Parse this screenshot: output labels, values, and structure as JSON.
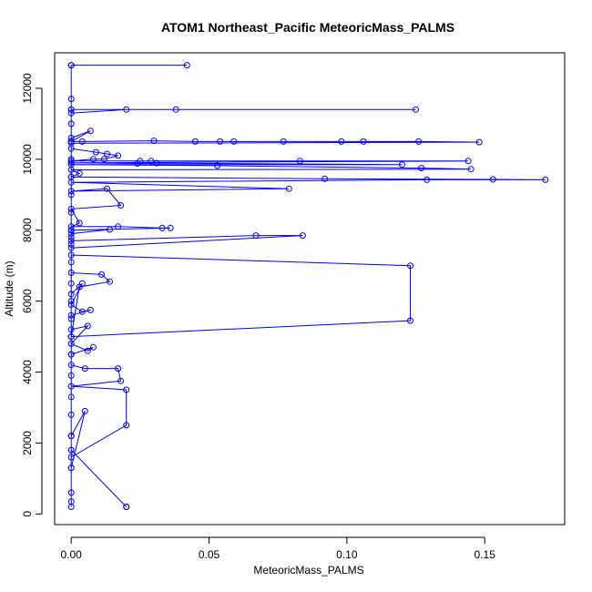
{
  "chart_data": {
    "type": "line",
    "title": "ATOM1 Northeast_Pacific MeteoricMass_PALMS",
    "xlabel": "MeteoricMass_PALMS",
    "ylabel": "Altitude (m)",
    "xlim": [
      -0.006,
      0.179
    ],
    "ylim": [
      -300,
      13000
    ],
    "x_ticks": [
      0.0,
      0.05,
      0.1,
      0.15
    ],
    "x_tick_labels": [
      "0.00",
      "0.05",
      "0.10",
      "0.15"
    ],
    "y_ticks": [
      0,
      2000,
      4000,
      6000,
      8000,
      10000,
      12000
    ],
    "y_tick_labels": [
      "0",
      "2000",
      "4000",
      "6000",
      "8000",
      "10000",
      "12000"
    ],
    "grid": false,
    "legend": "none",
    "marker": "open-circle",
    "color": "#0000ff",
    "series": [
      {
        "points": [
          [
            0.0,
            200
          ],
          [
            0.0,
            350
          ],
          [
            0.0,
            600
          ],
          [
            0.0,
            1300
          ],
          [
            0.0,
            1800
          ],
          [
            0.0,
            2200
          ],
          [
            0.0,
            2800
          ],
          [
            0.0,
            3300
          ],
          [
            0.0,
            3900
          ],
          [
            0.0,
            4500
          ],
          [
            0.0,
            5000
          ],
          [
            0.0,
            5500
          ],
          [
            0.0,
            6000
          ],
          [
            0.0,
            6500
          ],
          [
            0.0,
            7100
          ],
          [
            0.0,
            7600
          ],
          [
            0.0,
            8000
          ],
          [
            0.0,
            8500
          ],
          [
            0.0,
            9000
          ],
          [
            0.0,
            9500
          ],
          [
            0.0,
            10000
          ],
          [
            0.0,
            10500
          ],
          [
            0.0,
            11000
          ],
          [
            0.0,
            11400
          ],
          [
            0.0,
            11700
          ],
          [
            0.0,
            12650
          ],
          [
            0.042,
            12650
          ],
          [
            0.0,
            12650
          ],
          [
            0.0,
            11300
          ],
          [
            0.02,
            11400
          ],
          [
            0.038,
            11400
          ],
          [
            0.125,
            11400
          ],
          [
            0.0,
            11400
          ],
          [
            0.0,
            10600
          ],
          [
            0.007,
            10800
          ],
          [
            0.0,
            10500
          ],
          [
            0.004,
            10500
          ],
          [
            0.03,
            10520
          ],
          [
            0.045,
            10500
          ],
          [
            0.054,
            10500
          ],
          [
            0.059,
            10500
          ],
          [
            0.077,
            10500
          ],
          [
            0.098,
            10500
          ],
          [
            0.106,
            10500
          ],
          [
            0.126,
            10500
          ],
          [
            0.148,
            10480
          ],
          [
            0.0,
            10450
          ],
          [
            0.0,
            10300
          ],
          [
            0.009,
            10200
          ],
          [
            0.013,
            10150
          ],
          [
            0.017,
            10100
          ],
          [
            0.012,
            10000
          ],
          [
            0.008,
            10000
          ],
          [
            0.0,
            9950
          ],
          [
            0.025,
            9950
          ],
          [
            0.029,
            9950
          ],
          [
            0.083,
            9950
          ],
          [
            0.144,
            9950
          ],
          [
            0.0,
            9900
          ],
          [
            0.024,
            9880
          ],
          [
            0.031,
            9890
          ],
          [
            0.12,
            9850
          ],
          [
            0.0,
            9850
          ],
          [
            0.053,
            9820
          ],
          [
            0.127,
            9750
          ],
          [
            0.145,
            9720
          ],
          [
            0.0,
            9700
          ],
          [
            0.003,
            9600
          ],
          [
            0.0,
            9500
          ],
          [
            0.092,
            9450
          ],
          [
            0.153,
            9430
          ],
          [
            0.172,
            9420
          ],
          [
            0.129,
            9420
          ],
          [
            0.0,
            9350
          ],
          [
            0.079,
            9170
          ],
          [
            0.0,
            9100
          ],
          [
            0.013,
            9170
          ],
          [
            0.018,
            8700
          ],
          [
            0.0,
            8600
          ],
          [
            0.003,
            8200
          ],
          [
            0.0,
            8100
          ],
          [
            0.017,
            8100
          ],
          [
            0.033,
            8060
          ],
          [
            0.036,
            8060
          ],
          [
            0.0,
            8000
          ],
          [
            0.014,
            8020
          ],
          [
            0.0,
            7900
          ],
          [
            0.0,
            7800
          ],
          [
            0.0,
            7700
          ],
          [
            0.067,
            7850
          ],
          [
            0.084,
            7850
          ],
          [
            0.0,
            7500
          ],
          [
            0.0,
            7300
          ],
          [
            0.123,
            7000
          ],
          [
            0.123,
            5450
          ],
          [
            0.0,
            5000
          ],
          [
            0.003,
            6400
          ],
          [
            0.014,
            6550
          ],
          [
            0.011,
            6750
          ],
          [
            0.0,
            6800
          ],
          [
            0.0,
            6200
          ],
          [
            0.004,
            6500
          ],
          [
            0.0,
            5900
          ],
          [
            0.004,
            5700
          ],
          [
            0.007,
            5750
          ],
          [
            0.0,
            5600
          ],
          [
            0.0,
            5200
          ],
          [
            0.006,
            5300
          ],
          [
            0.0,
            4800
          ],
          [
            0.006,
            4600
          ],
          [
            0.008,
            4700
          ],
          [
            0.0,
            4500
          ],
          [
            0.0,
            4200
          ],
          [
            0.005,
            4100
          ],
          [
            0.017,
            4100
          ],
          [
            0.018,
            3750
          ],
          [
            0.0,
            3600
          ],
          [
            0.02,
            3500
          ],
          [
            0.02,
            2500
          ],
          [
            0.0,
            1600
          ],
          [
            0.0,
            1300
          ],
          [
            0.005,
            2900
          ],
          [
            0.0,
            2200
          ],
          [
            0.0,
            1800
          ],
          [
            0.02,
            200
          ],
          [
            0.02,
            200
          ]
        ]
      }
    ]
  }
}
